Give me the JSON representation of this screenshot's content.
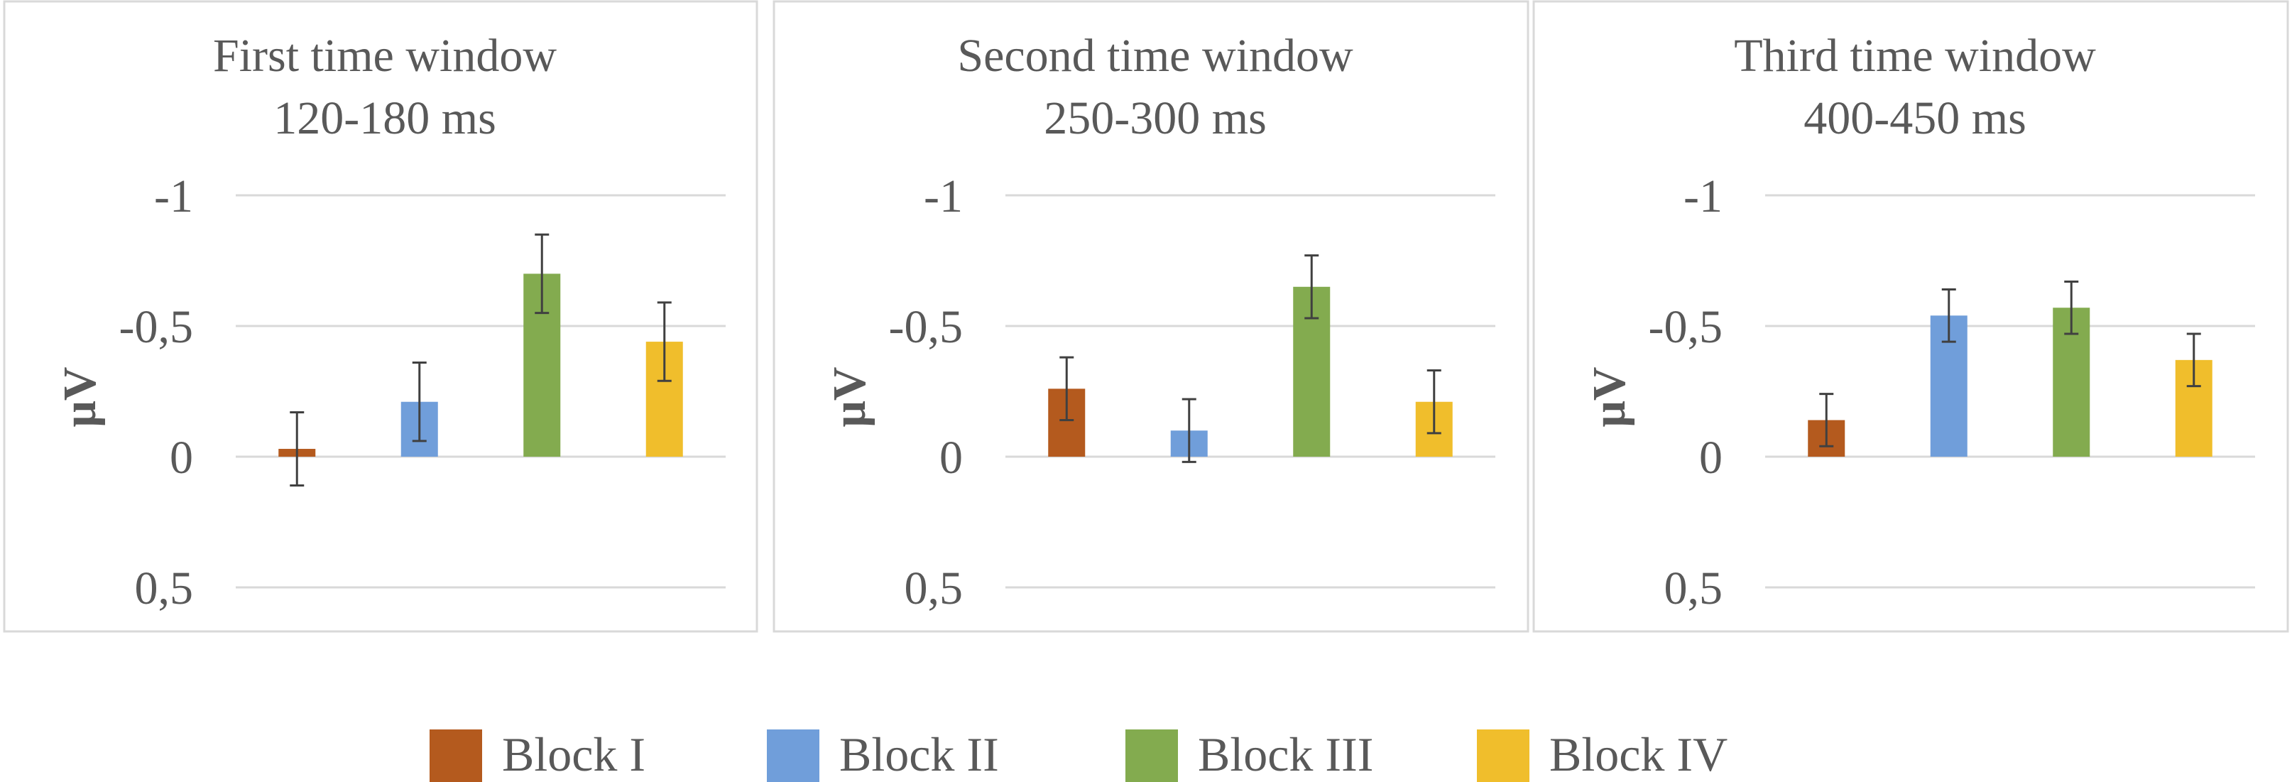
{
  "chart_data": [
    {
      "type": "bar",
      "title": "First time window",
      "subtitle": "120-180 ms",
      "ylabel": "μV",
      "xlabel": "",
      "y_inverted": true,
      "ylim": [
        -1,
        0.5
      ],
      "yticks": [
        -1,
        -0.5,
        0,
        0.5
      ],
      "ytick_labels": [
        "-1",
        "-0,5",
        "0",
        "0,5"
      ],
      "grid": true,
      "series": [
        {
          "name": "Block I",
          "value": -0.03,
          "err": 0.14
        },
        {
          "name": "Block II",
          "value": -0.21,
          "err": 0.15
        },
        {
          "name": "Block III",
          "value": -0.7,
          "err": 0.15
        },
        {
          "name": "Block IV",
          "value": -0.44,
          "err": 0.15
        }
      ]
    },
    {
      "type": "bar",
      "title": "Second time window",
      "subtitle": "250-300 ms",
      "ylabel": "μV",
      "xlabel": "",
      "y_inverted": true,
      "ylim": [
        -1,
        0.5
      ],
      "yticks": [
        -1,
        -0.5,
        0,
        0.5
      ],
      "ytick_labels": [
        "-1",
        "-0,5",
        "0",
        "0,5"
      ],
      "grid": true,
      "series": [
        {
          "name": "Block I",
          "value": -0.26,
          "err": 0.12
        },
        {
          "name": "Block II",
          "value": -0.1,
          "err": 0.12
        },
        {
          "name": "Block III",
          "value": -0.65,
          "err": 0.12
        },
        {
          "name": "Block IV",
          "value": -0.21,
          "err": 0.12
        }
      ]
    },
    {
      "type": "bar",
      "title": "Third time window",
      "subtitle": "400-450 ms",
      "ylabel": "μV",
      "xlabel": "",
      "y_inverted": true,
      "ylim": [
        -1,
        0.5
      ],
      "yticks": [
        -1,
        -0.5,
        0,
        0.5
      ],
      "ytick_labels": [
        "-1",
        "-0,5",
        "0",
        "0,5"
      ],
      "grid": true,
      "series": [
        {
          "name": "Block I",
          "value": -0.14,
          "err": 0.1
        },
        {
          "name": "Block II",
          "value": -0.54,
          "err": 0.1
        },
        {
          "name": "Block III",
          "value": -0.57,
          "err": 0.1
        },
        {
          "name": "Block IV",
          "value": -0.37,
          "err": 0.1
        }
      ]
    }
  ],
  "legend": {
    "placement": "bottom-center",
    "items": [
      {
        "label": "Block I",
        "color": "#B45A1E"
      },
      {
        "label": "Block II",
        "color": "#709EDA"
      },
      {
        "label": "Block III",
        "color": "#83AB4F"
      },
      {
        "label": "Block IV",
        "color": "#F0BE2C"
      }
    ]
  },
  "colors": {
    "gridline": "#D9D9D9",
    "panel_border": "#D9D9D9",
    "text": "#595959",
    "error_bar": "#404040"
  }
}
